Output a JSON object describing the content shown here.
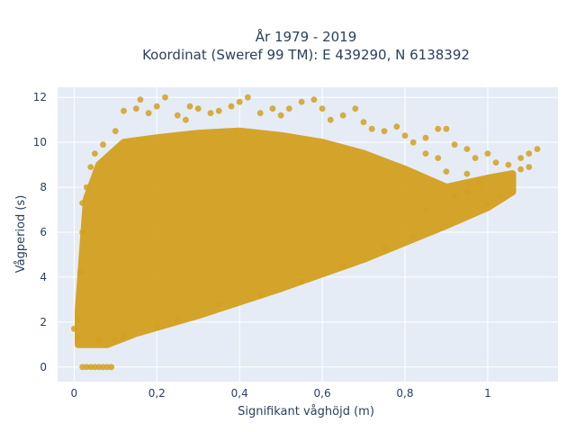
{
  "chart_data": {
    "type": "scatter",
    "title_lines": [
      "År 1979 - 2019",
      "Koordinat (Sweref 99 TM): E 439290, N 6138392"
    ],
    "xlabel": "Signifikant våghöjd (m)",
    "ylabel": "Vågperiod (s)",
    "xlim": [
      -0.04,
      1.17
    ],
    "ylim": [
      -0.65,
      12.45
    ],
    "xticks": [
      {
        "v": 0,
        "label": "0"
      },
      {
        "v": 0.2,
        "label": "0,2"
      },
      {
        "v": 0.4,
        "label": "0,4"
      },
      {
        "v": 0.6,
        "label": "0,6"
      },
      {
        "v": 0.8,
        "label": "0,8"
      },
      {
        "v": 1.0,
        "label": "1"
      }
    ],
    "yticks": [
      {
        "v": 0,
        "label": "0"
      },
      {
        "v": 2,
        "label": "2"
      },
      {
        "v": 4,
        "label": "4"
      },
      {
        "v": 6,
        "label": "6"
      },
      {
        "v": 8,
        "label": "8"
      },
      {
        "v": 10,
        "label": "10"
      },
      {
        "v": 12,
        "label": "12"
      }
    ],
    "grid": true,
    "marker_color": "#D4A020",
    "plot_bg": "#E5ECF6",
    "dense_region": [
      [
        0.01,
        1.0
      ],
      [
        0.03,
        1.0
      ],
      [
        0.08,
        1.0
      ],
      [
        0.15,
        1.5
      ],
      [
        0.3,
        2.3
      ],
      [
        0.5,
        3.5
      ],
      [
        0.7,
        4.8
      ],
      [
        0.9,
        6.3
      ],
      [
        1.0,
        7.1
      ],
      [
        1.06,
        7.8
      ],
      [
        1.06,
        8.6
      ],
      [
        1.0,
        8.4
      ],
      [
        0.9,
        8.0
      ],
      [
        0.8,
        8.8
      ],
      [
        0.7,
        9.5
      ],
      [
        0.6,
        10.0
      ],
      [
        0.5,
        10.3
      ],
      [
        0.4,
        10.5
      ],
      [
        0.3,
        10.4
      ],
      [
        0.2,
        10.2
      ],
      [
        0.12,
        10.0
      ],
      [
        0.06,
        9.0
      ],
      [
        0.03,
        7.5
      ],
      [
        0.02,
        5.0
      ],
      [
        0.01,
        2.5
      ]
    ],
    "points": [
      [
        0.02,
        0
      ],
      [
        0.03,
        0
      ],
      [
        0.04,
        0
      ],
      [
        0.05,
        0
      ],
      [
        0.06,
        0
      ],
      [
        0.07,
        0
      ],
      [
        0.08,
        0
      ],
      [
        0.09,
        0
      ],
      [
        0.0,
        1.7
      ],
      [
        0.01,
        1.3
      ],
      [
        0.01,
        2.1
      ],
      [
        0.015,
        4.2
      ],
      [
        0.02,
        6.0
      ],
      [
        0.02,
        7.3
      ],
      [
        0.03,
        8.0
      ],
      [
        0.04,
        8.9
      ],
      [
        0.05,
        9.5
      ],
      [
        0.07,
        9.9
      ],
      [
        0.1,
        10.5
      ],
      [
        0.12,
        11.4
      ],
      [
        0.15,
        11.5
      ],
      [
        0.16,
        11.9
      ],
      [
        0.18,
        11.3
      ],
      [
        0.2,
        11.6
      ],
      [
        0.22,
        12.0
      ],
      [
        0.25,
        11.2
      ],
      [
        0.27,
        11.0
      ],
      [
        0.28,
        11.6
      ],
      [
        0.3,
        11.5
      ],
      [
        0.33,
        11.3
      ],
      [
        0.35,
        11.4
      ],
      [
        0.38,
        11.6
      ],
      [
        0.4,
        11.8
      ],
      [
        0.42,
        12.0
      ],
      [
        0.45,
        11.3
      ],
      [
        0.48,
        11.5
      ],
      [
        0.5,
        11.2
      ],
      [
        0.52,
        11.5
      ],
      [
        0.55,
        11.8
      ],
      [
        0.58,
        11.9
      ],
      [
        0.6,
        11.5
      ],
      [
        0.62,
        11.0
      ],
      [
        0.65,
        11.2
      ],
      [
        0.68,
        11.5
      ],
      [
        0.7,
        10.9
      ],
      [
        0.72,
        10.6
      ],
      [
        0.75,
        10.5
      ],
      [
        0.78,
        10.7
      ],
      [
        0.8,
        10.3
      ],
      [
        0.82,
        10.0
      ],
      [
        0.85,
        10.2
      ],
      [
        0.88,
        10.6
      ],
      [
        0.9,
        10.6
      ],
      [
        0.92,
        9.9
      ],
      [
        0.95,
        9.7
      ],
      [
        0.97,
        9.3
      ],
      [
        1.0,
        9.5
      ],
      [
        1.02,
        9.1
      ],
      [
        1.05,
        9.0
      ],
      [
        1.08,
        9.3
      ],
      [
        1.1,
        9.5
      ],
      [
        1.12,
        9.7
      ],
      [
        1.1,
        8.9
      ],
      [
        1.08,
        8.8
      ],
      [
        0.85,
        9.5
      ],
      [
        0.88,
        9.3
      ],
      [
        0.9,
        8.7
      ],
      [
        0.95,
        8.6
      ],
      [
        0.98,
        8.2
      ],
      [
        0.92,
        7.6
      ],
      [
        0.85,
        7.0
      ],
      [
        0.95,
        7.8
      ],
      [
        1.0,
        7.3
      ],
      [
        1.03,
        7.6
      ],
      [
        0.06,
        1.2
      ],
      [
        0.1,
        1.2
      ],
      [
        0.12,
        1.4
      ],
      [
        0.2,
        1.8
      ],
      [
        0.25,
        2.1
      ],
      [
        0.35,
        2.8
      ],
      [
        0.45,
        3.2
      ],
      [
        0.55,
        3.8
      ],
      [
        0.65,
        4.5
      ],
      [
        0.75,
        5.3
      ],
      [
        0.82,
        5.8
      ]
    ]
  }
}
